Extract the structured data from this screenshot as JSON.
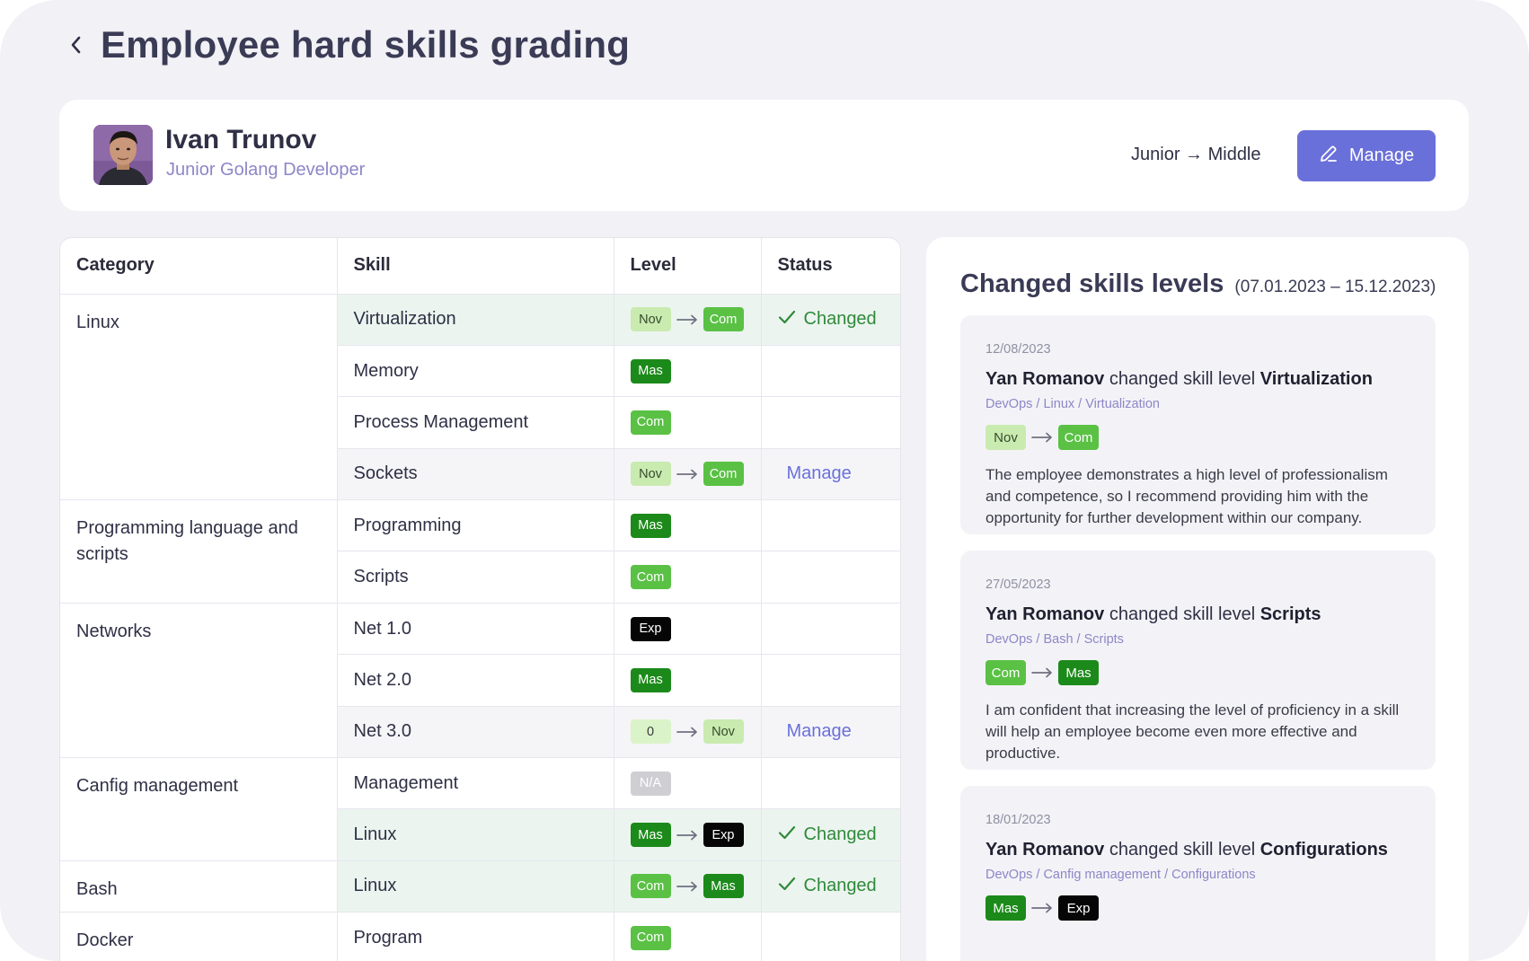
{
  "page": {
    "title": "Employee hard skills grading"
  },
  "employee": {
    "name": "Ivan Trunov",
    "role": "Junior Golang Developer",
    "grade_path": "Junior → Middle",
    "manage_label": "Manage"
  },
  "table": {
    "headers": {
      "category": "Category",
      "skill": "Skill",
      "level": "Level",
      "status": "Status"
    },
    "categories": [
      {
        "name": "Linux",
        "skills": [
          {
            "name": "Virtualization",
            "from": "Nov",
            "to": "Com",
            "status": "Changed",
            "state": "changed"
          },
          {
            "name": "Memory",
            "from": "Mas",
            "state": "none"
          },
          {
            "name": "Process Management",
            "from": "Com",
            "state": "none"
          },
          {
            "name": "Sockets",
            "from": "Nov",
            "to": "Com",
            "status": "Manage",
            "state": "pending"
          }
        ]
      },
      {
        "name": "Programming language and scripts",
        "skills": [
          {
            "name": "Programming",
            "from": "Mas",
            "state": "none"
          },
          {
            "name": "Scripts",
            "from": "Com",
            "state": "none"
          }
        ]
      },
      {
        "name": "Networks",
        "skills": [
          {
            "name": "Net 1.0",
            "from": "Exp",
            "state": "none"
          },
          {
            "name": "Net 2.0",
            "from": "Mas",
            "state": "none"
          },
          {
            "name": "Net 3.0",
            "from": "0",
            "to": "Nov",
            "status": "Manage",
            "state": "pending"
          }
        ]
      },
      {
        "name": "Canfig management",
        "skills": [
          {
            "name": "Management",
            "from": "N/A",
            "state": "none"
          },
          {
            "name": "Linux",
            "from": "Mas",
            "to": "Exp",
            "status": "Changed",
            "state": "changed"
          }
        ]
      },
      {
        "name": "Bash",
        "skills": [
          {
            "name": "Linux",
            "from": "Com",
            "to": "Mas",
            "status": "Changed",
            "state": "changed"
          }
        ]
      },
      {
        "name": "Docker",
        "skills": [
          {
            "name": "Program",
            "from": "Com",
            "state": "none"
          }
        ]
      }
    ]
  },
  "history": {
    "title": "Changed skills levels",
    "range": "(07.01.2023 – 15.12.2023)",
    "entries": [
      {
        "date": "12/08/2023",
        "author": "Yan Romanov",
        "action": "changed skill level",
        "skill": "Virtualization",
        "path": "DevOps / Linux / Virtualization",
        "from": "Nov",
        "to": "Com",
        "comment": "The employee demonstrates a high level of professionalism and competence, so I recommend providing him with the opportunity for further development within our company."
      },
      {
        "date": "27/05/2023",
        "author": "Yan Romanov",
        "action": "changed skill level",
        "skill": "Scripts",
        "path": "DevOps / Bash / Scripts",
        "from": "Com",
        "to": "Mas",
        "comment": "I am confident that increasing the level of proficiency in a skill will help an employee become even more effective and productive."
      },
      {
        "date": "18/01/2023",
        "author": "Yan Romanov",
        "action": "changed skill level",
        "skill": "Configurations",
        "path": "DevOps / Canfig management / Configurations",
        "from": "Mas",
        "to": "Exp",
        "comment": ""
      }
    ]
  },
  "colors": {
    "accent": "#6a70d9",
    "nov": "#c9ebb0",
    "com": "#5ac145",
    "mas": "#1c8a1a",
    "exp": "#060606",
    "changed": "#2f8a3a",
    "changed_row": "#ecf4ef"
  },
  "icons": {
    "back": "chevron-left-icon",
    "edit": "pencil-icon",
    "arrow": "arrow-right-icon",
    "check": "check-icon"
  }
}
